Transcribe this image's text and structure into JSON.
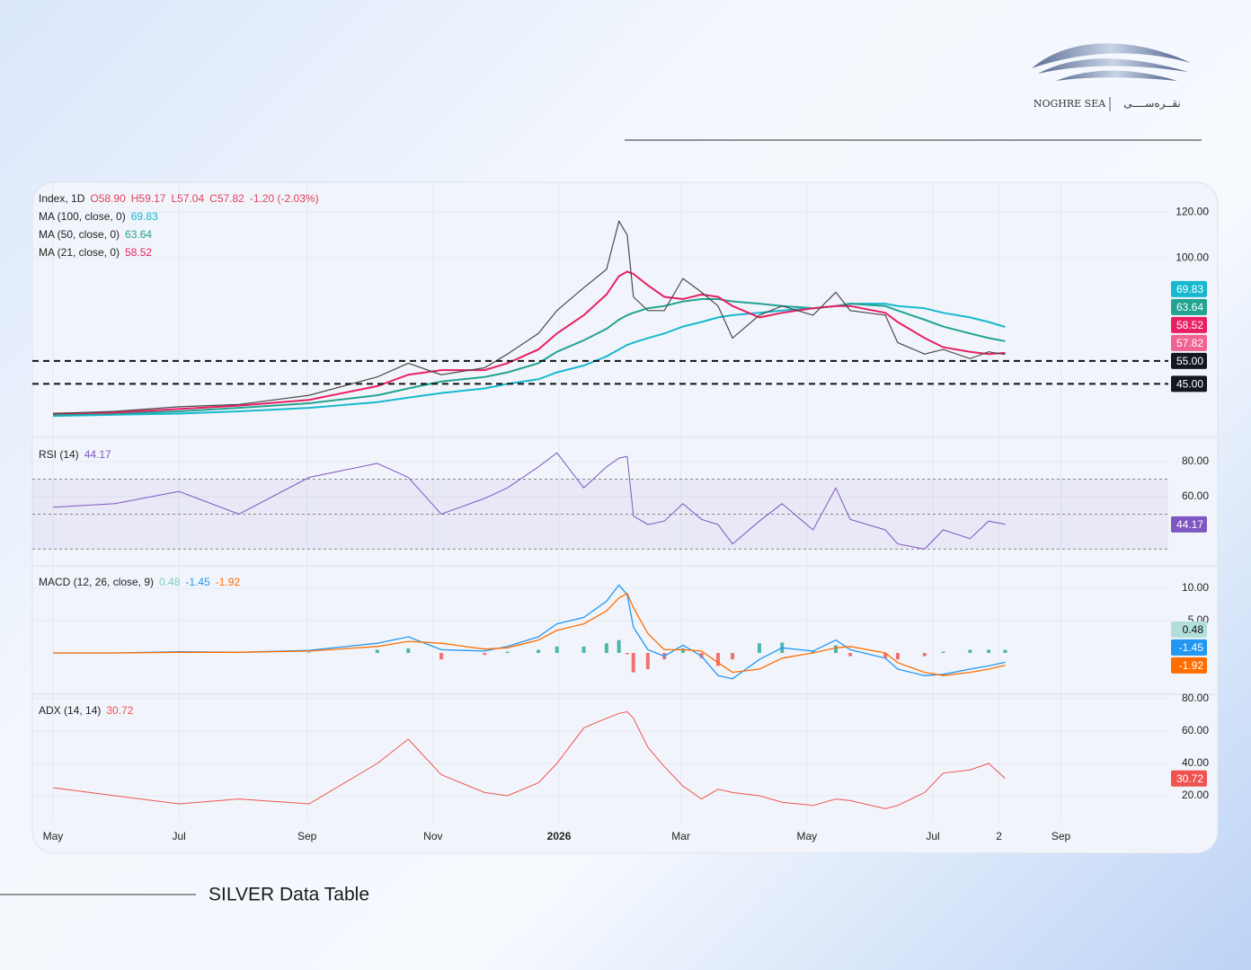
{
  "brand": {
    "name": "NOGHRE SEA",
    "name_fa": "نقــره‌ســــی"
  },
  "footer": {
    "title": "SILVER Data Table"
  },
  "chart_data": [
    {
      "type": "line",
      "title": "Index, 1D",
      "ohlc": [
        "O58.90",
        "H59.17",
        "L57.04",
        "C57.82"
      ],
      "change": "-1.20 (-2.03%)",
      "x": [
        0,
        30,
        61,
        90,
        124,
        157,
        172,
        188,
        209,
        220,
        235,
        244,
        257,
        268,
        274,
        278,
        281,
        288,
        296,
        305,
        314,
        322,
        329,
        342,
        353,
        368,
        379,
        386,
        403,
        409,
        422,
        431,
        444,
        453,
        461
      ],
      "xlim": [
        -10,
        540
      ],
      "xticks": [
        {
          "value": 0,
          "label": "May"
        },
        {
          "value": 61,
          "label": "Jul"
        },
        {
          "value": 123,
          "label": "Sep"
        },
        {
          "value": 184,
          "label": "Nov"
        },
        {
          "value": 245,
          "label": "2026"
        },
        {
          "value": 304,
          "label": "Mar"
        },
        {
          "value": 365,
          "label": "May"
        },
        {
          "value": 426,
          "label": "Jul"
        },
        {
          "value": 458,
          "label": "2"
        },
        {
          "value": 488,
          "label": "Sep"
        }
      ],
      "values": [
        32,
        33,
        35,
        36,
        40,
        48,
        54,
        49,
        52,
        58,
        67,
        77,
        87,
        95,
        116,
        110,
        83,
        77,
        77,
        91,
        85,
        79,
        65,
        75,
        79,
        75,
        85,
        77,
        75,
        63,
        58,
        60,
        56,
        59,
        57.82
      ],
      "color": "#4a4a4a",
      "marker_color": "#f06292",
      "ylim": [
        22.4,
        132.2
      ],
      "yticks": [
        {
          "value": 100,
          "label": "100.00"
        },
        {
          "value": 120,
          "label": "120.00"
        }
      ],
      "grid": true,
      "series": [
        {
          "name": "MA (100, close, 0)",
          "color": "#17b8cf",
          "values": [
            31,
            31.5,
            32,
            33,
            34.5,
            37,
            39,
            41,
            43,
            45,
            47,
            50,
            53,
            57,
            60,
            62,
            63,
            65,
            67,
            70,
            72,
            74,
            75,
            76,
            77,
            78,
            79,
            80,
            80,
            79,
            78,
            76,
            74,
            72,
            69.83
          ]
        },
        {
          "name": "MA (50, close, 0)",
          "color": "#22a391",
          "values": [
            31.5,
            32,
            33,
            34.5,
            36.5,
            40,
            43,
            46,
            48,
            50,
            54,
            59,
            64,
            69,
            73,
            75,
            76,
            78,
            79,
            81,
            82,
            82,
            81,
            80,
            79,
            78,
            79,
            80,
            79,
            77,
            73,
            70,
            67,
            65,
            63.64
          ]
        },
        {
          "name": "MA (21, close, 0)",
          "color": "#e91e63",
          "values": [
            32,
            32.5,
            34,
            35.5,
            38,
            44,
            49,
            51,
            51,
            54,
            60,
            67,
            75,
            84,
            92,
            94,
            93,
            88,
            83,
            82,
            84,
            83,
            79,
            74,
            76,
            78,
            79,
            79,
            76,
            72,
            65,
            61,
            59,
            58,
            58.52
          ]
        }
      ],
      "hlines": [
        {
          "value": 55,
          "label": "55.00"
        },
        {
          "value": 45,
          "label": "45.00"
        }
      ]
    },
    {
      "type": "line",
      "title": "RSI (14)",
      "color": "#7e57c2",
      "values": [
        54,
        56,
        63,
        50,
        71,
        79,
        71,
        50,
        59,
        65,
        77,
        85,
        65,
        77,
        82,
        83,
        49,
        44,
        46,
        56,
        47,
        44,
        33,
        46,
        56,
        41,
        65,
        47,
        41,
        33,
        30,
        41,
        36,
        46,
        44.17
      ],
      "ylim": [
        21.5,
        92.3
      ],
      "yticks": [
        {
          "value": 80,
          "label": "80.00"
        },
        {
          "value": 60,
          "label": "60.00"
        }
      ],
      "grid": true,
      "band": [
        30,
        70
      ],
      "midline": 50
    },
    {
      "type": "macd",
      "title": "MACD (12, 26, close, 9)",
      "down_color": "#ef5350",
      "series": [
        {
          "kind": "histogram",
          "color": "#26a69a",
          "values": [
            0,
            0,
            0.1,
            0,
            0.1,
            0.5,
            0.7,
            -1,
            -0.3,
            0.2,
            0.5,
            1,
            1,
            1.5,
            2,
            -0.2,
            -3,
            -2.5,
            -1,
            0.7,
            -0.8,
            -2,
            -1,
            1.5,
            1.6,
            0.3,
            1.2,
            -0.5,
            -0.8,
            -1,
            -0.5,
            0.2,
            0.5,
            0.5,
            0.48
          ]
        },
        {
          "color": "#2196f3",
          "values": [
            0,
            0,
            0.2,
            0.1,
            0.4,
            1.5,
            2.5,
            0.5,
            0.3,
            1,
            2.5,
            4.5,
            5.5,
            8,
            10.5,
            9,
            4,
            0.5,
            -0.5,
            1.2,
            -0.5,
            -3.5,
            -4,
            -1,
            0.8,
            0.3,
            2,
            0.5,
            -0.8,
            -2.5,
            -3.5,
            -3.3,
            -2.5,
            -2,
            -1.45
          ]
        },
        {
          "color": "#ff6d00",
          "values": [
            0,
            0,
            0.1,
            0.1,
            0.3,
            1,
            1.8,
            1.5,
            0.6,
            0.8,
            2,
            3.5,
            4.5,
            6.5,
            8.5,
            9.2,
            7,
            3,
            0.5,
            0.5,
            0.3,
            -1.5,
            -3,
            -2.5,
            -0.8,
            0,
            0.8,
            1,
            0,
            -1.5,
            -3,
            -3.5,
            -3,
            -2.5,
            -1.92
          ]
        }
      ],
      "ylim": [
        -6.25,
        13.2
      ],
      "yticks": [
        {
          "value": 10,
          "label": "10.00"
        },
        {
          "value": 5,
          "label": "5.00"
        }
      ],
      "grid": true
    },
    {
      "type": "line",
      "title": "ADX (14, 14)",
      "color": "#ef5350",
      "values": [
        25,
        20,
        15,
        18,
        15,
        40,
        55,
        33,
        22,
        20,
        28,
        40,
        62,
        68,
        71,
        72,
        68,
        50,
        38,
        26,
        18,
        24,
        22,
        20,
        16,
        14,
        18,
        17,
        12,
        14,
        22,
        34,
        36,
        40,
        30.72
      ],
      "ylim": [
        3.9,
        81.7
      ],
      "yticks": [
        {
          "value": 80,
          "label": "80.00"
        },
        {
          "value": 60,
          "label": "60.00"
        },
        {
          "value": 40,
          "label": "40.00"
        },
        {
          "value": 20,
          "label": "20.00"
        }
      ],
      "grid": true
    }
  ]
}
